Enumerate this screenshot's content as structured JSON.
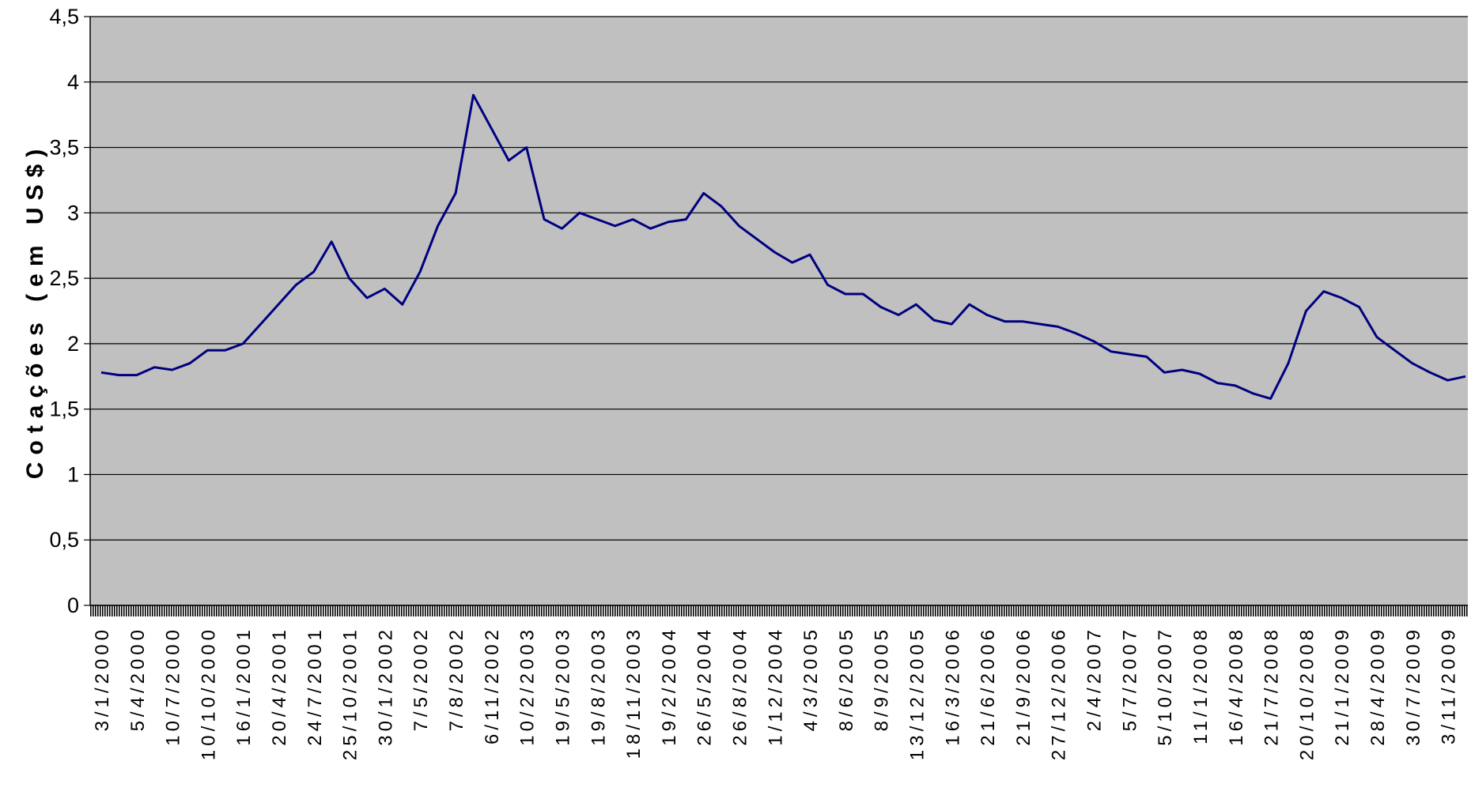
{
  "chart_data": {
    "type": "line",
    "y_label": "Cotações (em US$)",
    "categories": [
      "3/1/2000",
      null,
      "5/4/2000",
      null,
      "10/7/2000",
      null,
      "10/10/2000",
      null,
      "16/1/2001",
      null,
      "20/4/2001",
      null,
      "24/7/2001",
      null,
      "25/10/2001",
      null,
      "30/1/2002",
      null,
      "7/5/2002",
      null,
      "7/8/2002",
      null,
      "6/11/2002",
      null,
      "10/2/2003",
      null,
      "19/5/2003",
      null,
      "19/8/2003",
      null,
      "18/11/2003",
      null,
      "19/2/2004",
      null,
      "26/5/2004",
      null,
      "26/8/2004",
      null,
      "1/12/2004",
      null,
      "4/3/2005",
      null,
      "8/6/2005",
      null,
      "8/9/2005",
      null,
      "13/12/2005",
      null,
      "16/3/2006",
      null,
      "21/6/2006",
      null,
      "21/9/2006",
      null,
      "27/12/2006",
      null,
      "2/4/2007",
      null,
      "5/7/2007",
      null,
      "5/10/2007",
      null,
      "11/1/2008",
      null,
      "16/4/2008",
      null,
      "21/7/2008",
      null,
      "20/10/2008",
      null,
      "21/1/2009",
      null,
      "28/4/2009",
      null,
      "30/7/2009",
      null,
      "3/11/2009",
      null
    ],
    "series": [
      {
        "name": "Cotações",
        "color": "#000080",
        "values": [
          1.78,
          1.76,
          1.76,
          1.82,
          1.8,
          1.85,
          1.95,
          1.95,
          2.0,
          2.15,
          2.3,
          2.45,
          2.55,
          2.78,
          2.5,
          2.35,
          2.42,
          2.3,
          2.55,
          2.9,
          3.15,
          3.9,
          3.65,
          3.4,
          3.5,
          2.95,
          2.88,
          3.0,
          2.95,
          2.9,
          2.95,
          2.88,
          2.93,
          2.95,
          3.15,
          3.05,
          2.9,
          2.8,
          2.7,
          2.62,
          2.68,
          2.45,
          2.38,
          2.38,
          2.28,
          2.22,
          2.3,
          2.18,
          2.15,
          2.3,
          2.22,
          2.17,
          2.17,
          2.15,
          2.13,
          2.08,
          2.02,
          1.94,
          1.92,
          1.9,
          1.78,
          1.8,
          1.77,
          1.7,
          1.68,
          1.62,
          1.58,
          1.85,
          2.25,
          2.4,
          2.35,
          2.28,
          2.05,
          1.95,
          1.85,
          1.78,
          1.72,
          1.75
        ]
      }
    ],
    "ylim": [
      0,
      4.5
    ],
    "yticks": [
      0,
      {
        "value": 0.5,
        "label": "0,5"
      },
      1,
      {
        "value": 1.5,
        "label": "1,5"
      },
      2,
      {
        "value": 2.5,
        "label": "2,5"
      },
      3,
      {
        "value": 3.5,
        "label": "3,5"
      },
      4,
      {
        "value": 4.5,
        "label": "4,5"
      }
    ],
    "grid": true,
    "background": "#c0c0c0"
  }
}
